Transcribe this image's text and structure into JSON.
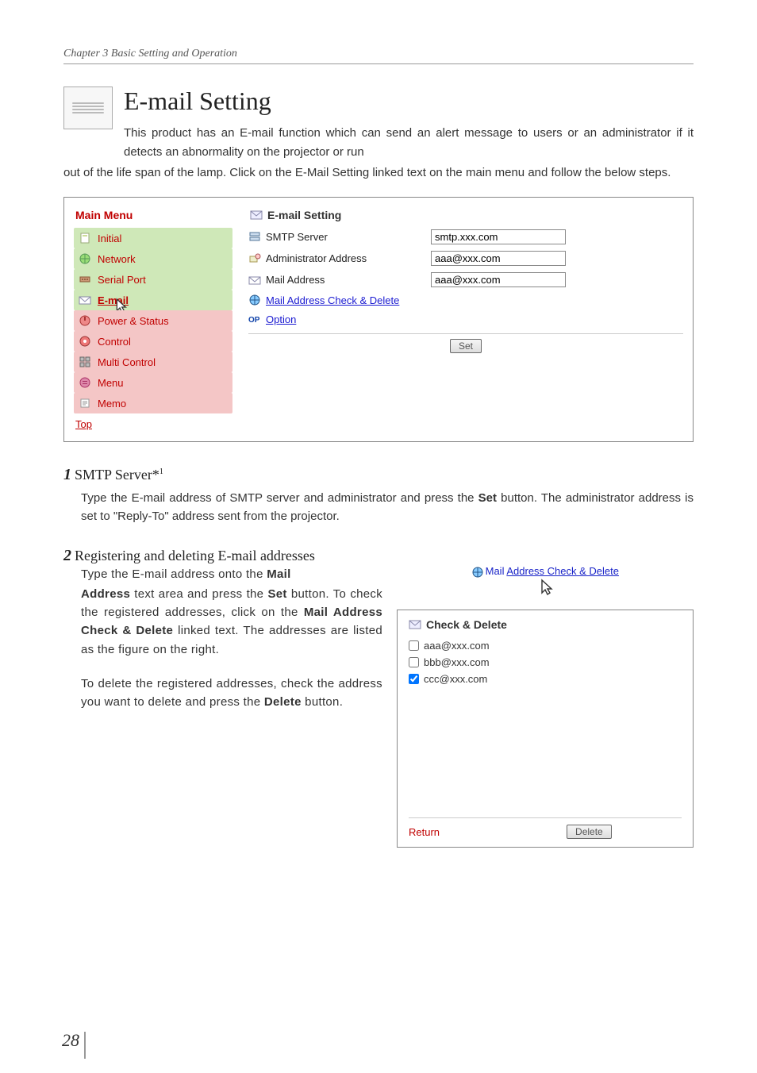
{
  "chapter": "Chapter 3 Basic Setting and Operation",
  "title": "E-mail Setting",
  "intro_inline": "This product has an E-mail function which can send an alert message to users or an administrator if it detects an abnormality on the projector or run",
  "intro_rest": "out of the life span of the lamp. Click on the E-Mail Setting linked text on the main menu and follow the below steps.",
  "bold_email_setting": "E-Mail Setting",
  "panel": {
    "menu_header": "Main Menu",
    "content_header": "E-mail Setting",
    "items": [
      {
        "label": "Initial",
        "cls": "grn"
      },
      {
        "label": "Network",
        "cls": "grn"
      },
      {
        "label": "Serial Port",
        "cls": "grn"
      },
      {
        "label": "E-mail",
        "cls": "grn",
        "current": true
      },
      {
        "label": "Power & Status",
        "cls": "pnk"
      },
      {
        "label": "Control",
        "cls": "pnk"
      },
      {
        "label": "Multi Control",
        "cls": "pnk"
      },
      {
        "label": "Menu",
        "cls": "pnk"
      },
      {
        "label": "Memo",
        "cls": "pnk"
      }
    ],
    "top": "Top",
    "rows": {
      "smtp_label": "SMTP Server",
      "smtp_value": "smtp.xxx.com",
      "admin_label": "Administrator Address",
      "admin_value": "aaa@xxx.com",
      "mail_label": "Mail Address",
      "mail_value": "aaa@xxx.com",
      "check_link": "Mail Address Check & Delete",
      "option_link": "Option",
      "set_button": "Set"
    }
  },
  "step1": {
    "num": "1",
    "heading": "SMTP Server*",
    "sup": "1",
    "body_a": "Type the E-mail address of SMTP server and administrator and press the ",
    "body_set": "Set",
    "body_b": " button. The administrator address is set to \"Reply-To\" address sent from the projector."
  },
  "step2": {
    "num": "2",
    "heading": "Registering and deleting E-mail addresses",
    "line1_a": "Type the E-mail address onto the ",
    "line1_mail": "Mail",
    "left_a": "Address",
    "left_b": " text area and press the ",
    "left_set": "Set",
    "left_c": " button. To check the registered addresses, click on the ",
    "left_mac": "Mail Address Check & Delete",
    "left_d": " linked text. The addresses are listed as the figure on the right.",
    "left_e": "To delete the registered addresses, check the address you want to delete and press the ",
    "left_del": "Delete",
    "left_f": " button.",
    "linkimg_lead": "Mail ",
    "linkimg_u": "Address Check & Delete"
  },
  "cd": {
    "header": "Check & Delete",
    "rows": [
      {
        "label": "aaa@xxx.com",
        "checked": false
      },
      {
        "label": "bbb@xxx.com",
        "checked": false
      },
      {
        "label": "ccc@xxx.com",
        "checked": true
      }
    ],
    "return": "Return",
    "delete": "Delete"
  },
  "page_number": "28",
  "colors": {
    "red": "#c00000",
    "blue": "#1a24c8",
    "menu_green": "#cfe8b8",
    "menu_pink": "#f4c6c6",
    "border": "#888888"
  }
}
